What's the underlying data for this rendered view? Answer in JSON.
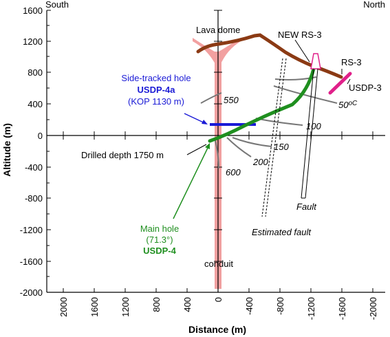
{
  "directions": {
    "left": "South",
    "right": "North"
  },
  "axes": {
    "ylabel": "Altitude (m)",
    "xlabel": "Distance (m)",
    "y_ticks": [
      "1600",
      "1200",
      "800",
      "400",
      "0",
      "-400",
      "-800",
      "-1200",
      "-1600",
      "-2000"
    ],
    "x_ticks": [
      "2000",
      "1600",
      "1200",
      "800",
      "400",
      "0",
      "-400",
      "-800",
      "-1200",
      "-1600",
      "-2000"
    ],
    "x_range": [
      2000,
      -2000
    ],
    "y_range": [
      -2000,
      1600
    ]
  },
  "labels": {
    "lava_dome": "Lava dome",
    "new_rs3": "NEW RS-3",
    "rs3": "RS-3",
    "usdp3": "USDP-3",
    "side_tracked_line1": "Side-tracked hole",
    "side_tracked_line2": "USDP-4a",
    "side_tracked_line3": "(KOP 1130 m)",
    "drilled_depth": "Drilled depth 1750 m",
    "main_hole_line1": "Main hole",
    "main_hole_line2": "(71.3°)",
    "main_hole_line3": "USDP-4",
    "conduit": "conduit",
    "fault": "Fault",
    "estimated_fault": "Estimated fault"
  },
  "isotherms": {
    "t50": "50",
    "t50_unit": "oC",
    "t100": "100",
    "t150": "150",
    "t200": "200",
    "t550": "550",
    "t600": "600"
  },
  "colors": {
    "conduit": "#f2a0a0",
    "topography": "#8b3a14",
    "main_hole": "#1f8f1f",
    "side_hole": "#1a1ad6",
    "rs3": "#e0208a",
    "isotherm": "#777777"
  }
}
